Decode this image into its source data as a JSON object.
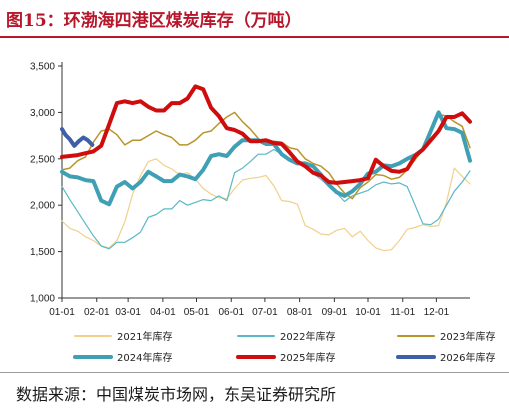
{
  "figure_title": "图15：环渤海四港区煤炭库存（万吨）",
  "source_text": "数据来源：中国煤炭市场网，东吴证券研究所",
  "chart_data": {
    "type": "line",
    "title": "",
    "xlabel": "",
    "ylabel": "",
    "x_ticks": [
      "01-01",
      "02-01",
      "03-01",
      "04-01",
      "05-01",
      "06-01",
      "07-01",
      "08-01",
      "09-01",
      "10-01",
      "11-01",
      "12-01"
    ],
    "y_ticks": [
      "1,000",
      "1,500",
      "2,000",
      "2,500",
      "3,000",
      "3,500"
    ],
    "ylim": [
      1000,
      3500
    ],
    "xlim": [
      1,
      365
    ],
    "grid": false,
    "legend_position": "bottom",
    "series": [
      {
        "name": "2021年库存",
        "color": "#f0d08c",
        "width": 1.2,
        "x": [
          1,
          8,
          15,
          22,
          29,
          36,
          43,
          50,
          57,
          64,
          71,
          78,
          85,
          92,
          99,
          106,
          113,
          120,
          127,
          134,
          141,
          148,
          155,
          162,
          169,
          176,
          183,
          190,
          197,
          204,
          211,
          218,
          225,
          232,
          239,
          246,
          253,
          260,
          267,
          274,
          281,
          288,
          295,
          302,
          309,
          316,
          323,
          330,
          337,
          344,
          351,
          358,
          365
        ],
        "y": [
          1830,
          1750,
          1720,
          1660,
          1620,
          1560,
          1540,
          1620,
          1820,
          2120,
          2320,
          2470,
          2500,
          2430,
          2390,
          2330,
          2350,
          2280,
          2180,
          2120,
          2080,
          2070,
          2180,
          2270,
          2290,
          2300,
          2320,
          2210,
          2050,
          2040,
          2010,
          1780,
          1740,
          1690,
          1680,
          1730,
          1750,
          1660,
          1720,
          1620,
          1540,
          1510,
          1520,
          1620,
          1740,
          1760,
          1790,
          1770,
          1780,
          2030,
          2400,
          2310,
          2230
        ]
      },
      {
        "name": "2022年库存",
        "color": "#5bb8c6",
        "width": 1.2,
        "x": [
          1,
          8,
          15,
          22,
          29,
          36,
          43,
          50,
          57,
          64,
          71,
          78,
          85,
          92,
          99,
          106,
          113,
          120,
          127,
          134,
          141,
          148,
          155,
          162,
          169,
          176,
          183,
          190,
          197,
          204,
          211,
          218,
          225,
          232,
          239,
          246,
          253,
          260,
          267,
          274,
          281,
          288,
          295,
          302,
          309,
          316,
          323,
          330,
          337,
          344,
          351,
          358,
          365
        ],
        "y": [
          2200,
          2060,
          1930,
          1800,
          1670,
          1560,
          1530,
          1600,
          1600,
          1650,
          1710,
          1870,
          1900,
          1960,
          1960,
          2050,
          2000,
          2030,
          2060,
          2050,
          2100,
          2050,
          2350,
          2400,
          2470,
          2550,
          2550,
          2600,
          2550,
          2500,
          2470,
          2450,
          2340,
          2280,
          2200,
          2130,
          2040,
          2100,
          2130,
          2160,
          2220,
          2250,
          2230,
          2240,
          2200,
          2000,
          1800,
          1790,
          1850,
          2000,
          2150,
          2250,
          2370
        ]
      },
      {
        "name": "2023年库存",
        "color": "#b8952a",
        "width": 1.5,
        "x": [
          1,
          8,
          15,
          22,
          29,
          36,
          43,
          50,
          57,
          64,
          71,
          78,
          85,
          92,
          99,
          106,
          113,
          120,
          127,
          134,
          141,
          148,
          155,
          162,
          169,
          176,
          183,
          190,
          197,
          204,
          211,
          218,
          225,
          232,
          239,
          246,
          253,
          260,
          267,
          274,
          281,
          288,
          295,
          302,
          309,
          316,
          323,
          330,
          337,
          344,
          351,
          358,
          365
        ],
        "y": [
          2380,
          2400,
          2480,
          2520,
          2680,
          2800,
          2820,
          2760,
          2650,
          2700,
          2700,
          2750,
          2800,
          2760,
          2730,
          2650,
          2650,
          2700,
          2780,
          2800,
          2880,
          2950,
          3000,
          2900,
          2820,
          2720,
          2650,
          2690,
          2680,
          2620,
          2600,
          2500,
          2450,
          2420,
          2350,
          2230,
          2130,
          2070,
          2190,
          2250,
          2330,
          2320,
          2280,
          2300,
          2380,
          2490,
          2600,
          2830,
          2980,
          2960,
          2900,
          2850,
          2620
        ]
      },
      {
        "name": "2024年库存",
        "color": "#3f9fb4",
        "width": 4.0,
        "x": [
          1,
          8,
          15,
          22,
          29,
          36,
          43,
          50,
          57,
          64,
          71,
          78,
          85,
          92,
          99,
          106,
          113,
          120,
          127,
          134,
          141,
          148,
          155,
          162,
          169,
          176,
          183,
          190,
          197,
          204,
          211,
          218,
          225,
          232,
          239,
          246,
          253,
          260,
          267,
          274,
          281,
          288,
          295,
          302,
          309,
          316,
          323,
          330,
          337,
          344,
          351,
          358,
          365
        ],
        "y": [
          2360,
          2310,
          2300,
          2270,
          2260,
          2050,
          2010,
          2200,
          2250,
          2180,
          2250,
          2360,
          2310,
          2260,
          2260,
          2330,
          2310,
          2280,
          2380,
          2530,
          2550,
          2530,
          2630,
          2700,
          2700,
          2700,
          2660,
          2660,
          2550,
          2490,
          2450,
          2450,
          2420,
          2330,
          2220,
          2140,
          2100,
          2150,
          2230,
          2340,
          2360,
          2430,
          2420,
          2450,
          2500,
          2540,
          2600,
          2800,
          3000,
          2830,
          2820,
          2780,
          2480
        ]
      },
      {
        "name": "2025年库存",
        "color": "#cf0d0d",
        "width": 4.0,
        "x": [
          1,
          8,
          15,
          22,
          29,
          36,
          43,
          50,
          57,
          64,
          71,
          78,
          85,
          92,
          99,
          106,
          113,
          120,
          127,
          134,
          141,
          148,
          155,
          162,
          169,
          176,
          183,
          190,
          197,
          204,
          211,
          218,
          225,
          232,
          239,
          246,
          253,
          260,
          267,
          274,
          281,
          288,
          295,
          302,
          309,
          316,
          323,
          330,
          337,
          344,
          351,
          358,
          365
        ],
        "y": [
          2520,
          2530,
          2540,
          2560,
          2580,
          2640,
          2870,
          3100,
          3120,
          3100,
          3120,
          3060,
          3020,
          3020,
          3100,
          3100,
          3150,
          3280,
          3250,
          3050,
          2960,
          2830,
          2810,
          2770,
          2690,
          2690,
          2700,
          2670,
          2660,
          2570,
          2470,
          2420,
          2350,
          2320,
          2250,
          2240,
          2250,
          2260,
          2270,
          2290,
          2490,
          2420,
          2370,
          2360,
          2390,
          2530,
          2600,
          2700,
          2800,
          2950,
          2950,
          2990,
          2900
        ]
      },
      {
        "name": "2026年库存",
        "color": "#3f5fa8",
        "width": 4.0,
        "x": [
          1,
          4,
          8,
          12,
          16,
          20,
          24,
          28
        ],
        "y": [
          2820,
          2760,
          2710,
          2640,
          2690,
          2730,
          2700,
          2650
        ]
      }
    ]
  }
}
